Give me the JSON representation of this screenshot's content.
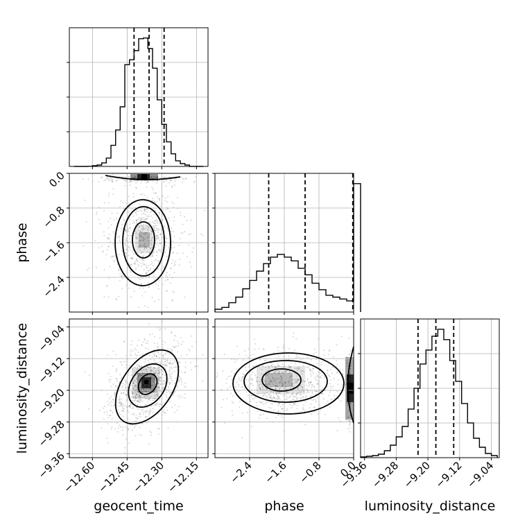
{
  "chart_data": {
    "type": "corner",
    "parameters": [
      {
        "name": "geocent_time",
        "label": "geocent_time",
        "range": [
          -12.7,
          -12.1
        ],
        "ticks": [
          -12.6,
          -12.45,
          -12.3,
          -12.15
        ],
        "tick_labels": [
          "−12.60",
          "−12.45",
          "−12.30",
          "−12.15"
        ],
        "quantiles": [
          -12.42,
          -12.355,
          -12.29
        ],
        "histogram": {
          "bins": [
            -12.68,
            -12.66,
            -12.64,
            -12.62,
            -12.6,
            -12.58,
            -12.56,
            -12.54,
            -12.52,
            -12.5,
            -12.48,
            -12.46,
            -12.44,
            -12.42,
            -12.4,
            -12.38,
            -12.36,
            -12.34,
            -12.32,
            -12.3,
            -12.28,
            -12.26,
            -12.24,
            -12.22,
            -12.2,
            -12.18,
            -12.16,
            -12.14
          ],
          "values": [
            0,
            0,
            0,
            0.2,
            1,
            2,
            5,
            12,
            30,
            52,
            85,
            145,
            152,
            165,
            182,
            183,
            168,
            140,
            95,
            60,
            35,
            18,
            8,
            4,
            2,
            0,
            0,
            0
          ]
        }
      },
      {
        "name": "phase",
        "label": "phase",
        "range": [
          -3.2,
          0.0
        ],
        "ticks": [
          -2.4,
          -1.6,
          -0.8,
          0.0
        ],
        "tick_labels": [
          "−2.4",
          "−1.6",
          "−0.8",
          "0.0"
        ],
        "y_tick_labels": [
          "0.0",
          "−0.8",
          "−1.6",
          "−2.4"
        ],
        "quantiles": [
          -1.96,
          -1.12,
          -0.02
        ],
        "histogram": {
          "bins": [
            -3.2,
            -3.04,
            -2.88,
            -2.72,
            -2.56,
            -2.4,
            -2.24,
            -2.08,
            -1.92,
            -1.76,
            -1.6,
            -1.44,
            -1.28,
            -1.12,
            -0.96,
            -0.8,
            -0.64,
            -0.48,
            -0.32,
            -0.16,
            0.0
          ],
          "values": [
            3,
            5,
            10,
            16,
            25,
            34,
            44,
            52,
            59,
            62,
            59,
            55,
            47,
            40,
            31,
            24,
            18,
            16,
            14,
            12,
            138
          ]
        }
      },
      {
        "name": "luminosity_distance",
        "label": "luminosity_distance",
        "range": [
          -9.37,
          -9.02
        ],
        "ticks": [
          -9.36,
          -9.28,
          -9.2,
          -9.12,
          -9.04
        ],
        "tick_labels": [
          "−9.36",
          "−9.28",
          "−9.20",
          "−9.12",
          "−9.04"
        ],
        "y_tick_labels": [
          "−9.04",
          "−9.12",
          "−9.20",
          "−9.28",
          "−9.36"
        ],
        "quantiles": [
          -9.225,
          -9.18,
          -9.135
        ],
        "histogram": {
          "bins": [
            -9.37,
            -9.355,
            -9.34,
            -9.325,
            -9.31,
            -9.295,
            -9.28,
            -9.265,
            -9.25,
            -9.235,
            -9.22,
            -9.205,
            -9.19,
            -9.175,
            -9.16,
            -9.145,
            -9.13,
            -9.115,
            -9.1,
            -9.085,
            -9.07,
            -9.055,
            -9.04
          ],
          "values": [
            1,
            2,
            3,
            5,
            10,
            18,
            30,
            45,
            70,
            100,
            135,
            155,
            175,
            185,
            170,
            140,
            110,
            78,
            50,
            28,
            15,
            6,
            3
          ]
        }
      }
    ],
    "pair_panels": [
      {
        "x": "geocent_time",
        "y": "phase",
        "note": "mode near phase -1.7 with a dense band at phase 0.0"
      },
      {
        "x": "geocent_time",
        "y": "luminosity_distance",
        "note": "positively correlated blob centered near (-12.36, -9.18)"
      },
      {
        "x": "phase",
        "y": "luminosity_distance",
        "note": "blob near phase -1.6, distance -9.17, dense edge at phase 0.0"
      }
    ],
    "grid": true,
    "legend": "none"
  }
}
